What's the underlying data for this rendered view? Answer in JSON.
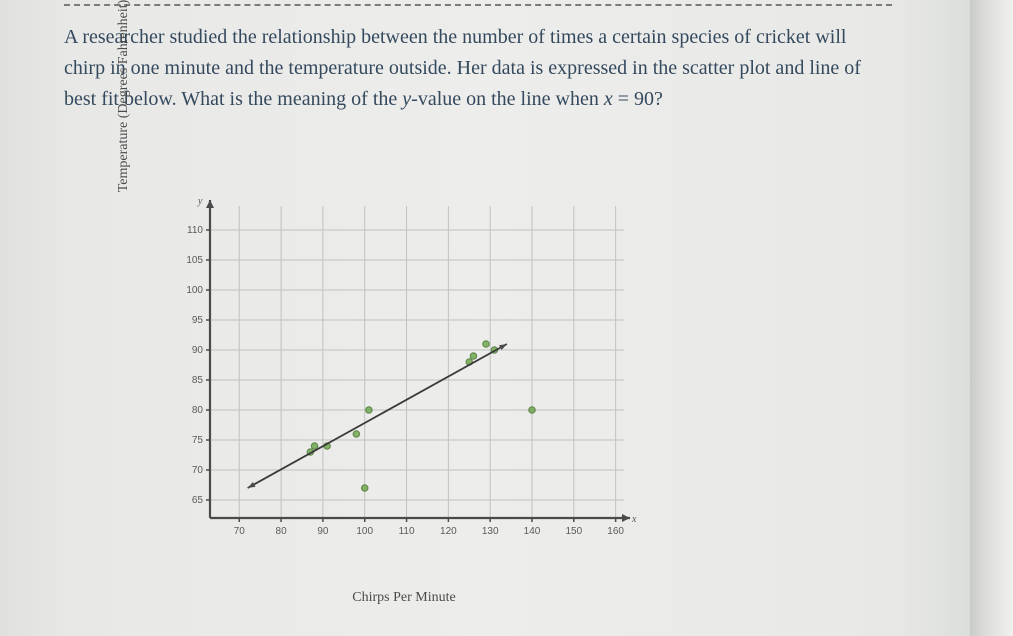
{
  "question_html": "A researcher studied the relationship between the number of times a certain species of cricket will chirp in one minute and the temperature outside. Her data is expressed in the scatter plot and line of best fit below. What is the meaning of the <i class=\"var\">y</i>-value on the line when <i class=\"var\">x</i> = 90?",
  "chart": {
    "type": "scatter",
    "y_axis_label": "Temperature (Degrees Fahrenheit)",
    "x_axis_label": "Chirps Per Minute",
    "y_indicator": "y",
    "x_indicator": "x",
    "xlim": [
      63,
      162
    ],
    "ylim": [
      62,
      114
    ],
    "xticks": [
      70,
      80,
      90,
      100,
      110,
      120,
      130,
      140,
      150,
      160
    ],
    "yticks": [
      65,
      70,
      75,
      80,
      85,
      90,
      95,
      100,
      105,
      110
    ],
    "grid": true,
    "background_color": "#ededeb",
    "grid_color": "#c0c2c0",
    "axis_color": "#4a4a4a",
    "tick_fontsize": 10,
    "label_fontsize": 14,
    "points": [
      {
        "x": 87,
        "y": 73
      },
      {
        "x": 88,
        "y": 74
      },
      {
        "x": 91,
        "y": 74
      },
      {
        "x": 98,
        "y": 76
      },
      {
        "x": 101,
        "y": 80
      },
      {
        "x": 100,
        "y": 67
      },
      {
        "x": 125,
        "y": 88
      },
      {
        "x": 126,
        "y": 89
      },
      {
        "x": 129,
        "y": 91
      },
      {
        "x": 131,
        "y": 90
      },
      {
        "x": 140,
        "y": 80
      }
    ],
    "point_color_fill": "#6fa84f",
    "point_color_stroke": "#4d7a36",
    "point_radius": 3.2,
    "fit_line": {
      "x1": 72,
      "y1": 67,
      "x2": 134,
      "y2": 91,
      "stroke": "#3a3a3a",
      "width": 1.8
    }
  }
}
